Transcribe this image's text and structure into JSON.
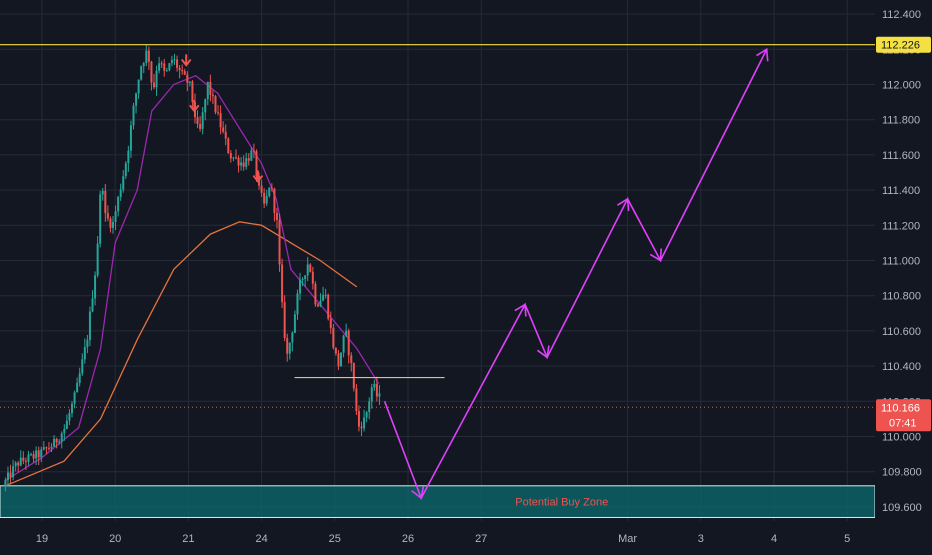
{
  "colors": {
    "background": "#131722",
    "grid": "#262b38",
    "axis_text": "#b2b5be",
    "up_candle": "#26a69a",
    "down_candle": "#ef5350",
    "ma_fast": "#9c27b0",
    "ma_slow": "#e4723c",
    "resistance_line": "#f5e043",
    "support_line": "#f0c060",
    "zone_fill": "#0b6b6e",
    "zone_border": "#d0f0f0",
    "zone_text": "#ef5350",
    "projection": "#e040fb",
    "price_dotted": "#ef5350",
    "price_badge": "#ef5350",
    "level_badge": "#f5e043",
    "arrow_marker": "#ef5350"
  },
  "chart_data": {
    "type": "candlestick",
    "instrument_unit": "price",
    "y_axis": {
      "ylim": [
        109.52,
        112.48
      ],
      "ticks": [
        "109.600",
        "109.800",
        "110.000",
        "110.200",
        "110.400",
        "110.600",
        "110.800",
        "111.000",
        "111.200",
        "111.400",
        "111.600",
        "111.800",
        "112.000",
        "112.200",
        "112.400"
      ],
      "tick_values": [
        109.6,
        109.8,
        110.0,
        110.2,
        110.4,
        110.6,
        110.8,
        111.0,
        111.2,
        111.4,
        111.6,
        111.8,
        112.0,
        112.2,
        112.4
      ]
    },
    "x_axis": {
      "ticks": [
        {
          "label": "19",
          "day": 0
        },
        {
          "label": "20",
          "day": 1
        },
        {
          "label": "21",
          "day": 2
        },
        {
          "label": "24",
          "day": 3
        },
        {
          "label": "25",
          "day": 4
        },
        {
          "label": "26",
          "day": 5
        },
        {
          "label": "27",
          "day": 6
        },
        {
          "label": "Mar",
          "day": 8
        },
        {
          "label": "3",
          "day": 9
        },
        {
          "label": "4",
          "day": 10
        },
        {
          "label": "5",
          "day": 11
        }
      ],
      "xlim_days": [
        -0.5,
        11.4
      ]
    },
    "price_path": [
      [
        -0.5,
        109.72
      ],
      [
        -0.3,
        109.85
      ],
      [
        0,
        109.9
      ],
      [
        0.2,
        109.96
      ],
      [
        0.35,
        110.05
      ],
      [
        0.5,
        110.25
      ],
      [
        0.65,
        110.55
      ],
      [
        0.78,
        111.0
      ],
      [
        0.85,
        111.5
      ],
      [
        0.9,
        111.25
      ],
      [
        1.0,
        111.2
      ],
      [
        1.1,
        111.4
      ],
      [
        1.2,
        111.6
      ],
      [
        1.28,
        111.85
      ],
      [
        1.38,
        112.1
      ],
      [
        1.48,
        112.2
      ],
      [
        1.55,
        111.95
      ],
      [
        1.62,
        112.15
      ],
      [
        1.72,
        112.05
      ],
      [
        1.82,
        112.15
      ],
      [
        1.95,
        112.05
      ],
      [
        2.05,
        112.0
      ],
      [
        2.18,
        111.7
      ],
      [
        2.3,
        112.0
      ],
      [
        2.45,
        111.8
      ],
      [
        2.6,
        111.6
      ],
      [
        2.78,
        111.55
      ],
      [
        2.92,
        111.62
      ],
      [
        3.0,
        111.4
      ],
      [
        3.08,
        111.3
      ],
      [
        3.15,
        111.45
      ],
      [
        3.25,
        111.2
      ],
      [
        3.3,
        110.8
      ],
      [
        3.38,
        110.45
      ],
      [
        3.45,
        110.6
      ],
      [
        3.55,
        110.85
      ],
      [
        3.68,
        111.0
      ],
      [
        3.78,
        110.75
      ],
      [
        3.9,
        110.82
      ],
      [
        4.0,
        110.55
      ],
      [
        4.08,
        110.4
      ],
      [
        4.18,
        110.6
      ],
      [
        4.28,
        110.35
      ],
      [
        4.35,
        110.05
      ],
      [
        4.45,
        110.1
      ],
      [
        4.55,
        110.3
      ],
      [
        4.62,
        110.22
      ]
    ],
    "ma_fast": [
      [
        -0.5,
        109.75
      ],
      [
        0,
        109.88
      ],
      [
        0.5,
        110.05
      ],
      [
        0.8,
        110.5
      ],
      [
        1.0,
        111.1
      ],
      [
        1.3,
        111.4
      ],
      [
        1.5,
        111.85
      ],
      [
        1.8,
        112.0
      ],
      [
        2.1,
        112.05
      ],
      [
        2.4,
        111.95
      ],
      [
        2.7,
        111.75
      ],
      [
        3.0,
        111.55
      ],
      [
        3.2,
        111.35
      ],
      [
        3.4,
        110.95
      ],
      [
        3.7,
        110.8
      ],
      [
        4.0,
        110.65
      ],
      [
        4.3,
        110.5
      ],
      [
        4.6,
        110.3
      ]
    ],
    "ma_slow": [
      [
        -0.5,
        109.72
      ],
      [
        0.3,
        109.86
      ],
      [
        0.8,
        110.1
      ],
      [
        1.3,
        110.55
      ],
      [
        1.8,
        110.95
      ],
      [
        2.3,
        111.15
      ],
      [
        2.7,
        111.22
      ],
      [
        3.0,
        111.2
      ],
      [
        3.4,
        111.1
      ],
      [
        3.8,
        111.0
      ],
      [
        4.3,
        110.85
      ]
    ],
    "projection_path": [
      [
        4.68,
        110.2
      ],
      [
        5.18,
        109.65
      ],
      [
        6.6,
        110.75
      ],
      [
        6.9,
        110.45
      ],
      [
        8.0,
        111.35
      ],
      [
        8.45,
        111.0
      ],
      [
        9.9,
        112.2
      ]
    ],
    "resistance_level": 112.226,
    "support_level": 110.335,
    "support_range_days": [
      3.45,
      5.5
    ],
    "current_price": 110.166,
    "countdown": "07:41",
    "zone": {
      "low": 109.54,
      "high": 109.72,
      "label": "Potential Buy Zone"
    },
    "arrow_markers": [
      {
        "day": 1.97,
        "price": 112.11
      },
      {
        "day": 2.08,
        "price": 111.85
      },
      {
        "day": 2.95,
        "price": 111.45
      }
    ]
  }
}
